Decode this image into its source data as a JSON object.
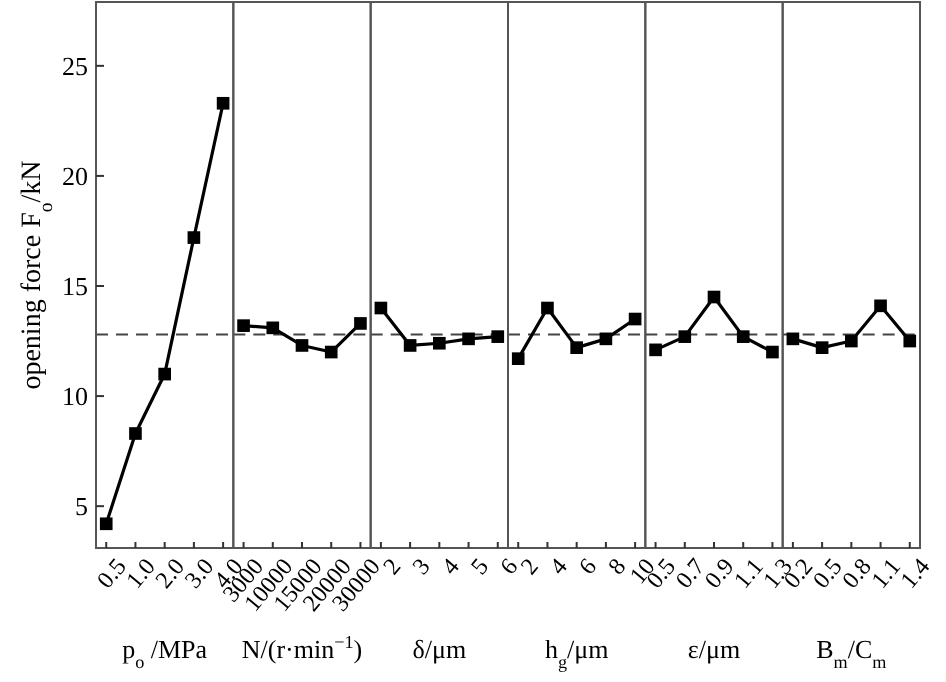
{
  "chart_data": [
    {
      "type": "line",
      "ylabel": "opening force F$_{o}$/kN",
      "xlabel": "p$_{o}$ /MPa",
      "categories": [
        "0.5",
        "1.0",
        "2.0",
        "3.0",
        "4.0"
      ],
      "series": [
        {
          "color": "#000000",
          "values": [
            4.2,
            8.3,
            11.0,
            17.2,
            23.3
          ]
        }
      ],
      "ylim": [
        3.1,
        27.9
      ],
      "yticks": [
        5,
        10,
        15,
        20,
        25
      ],
      "ref_lines": [
        {
          "axis": "y",
          "value": 12.8,
          "line_style": "dashed",
          "color": "#444444"
        }
      ],
      "marker": "square",
      "line_style": "solid",
      "grid": false
    },
    {
      "type": "line",
      "xlabel": "N/(r·min$^{−1}$)",
      "categories": [
        "3000",
        "10000",
        "15000",
        "20000",
        "30000"
      ],
      "series": [
        {
          "color": "#000000",
          "values": [
            13.2,
            13.1,
            12.3,
            12.0,
            13.3
          ]
        }
      ],
      "ylim": [
        3.1,
        27.9
      ],
      "yticks": [
        5,
        10,
        15,
        20,
        25
      ],
      "tick_labels": "x",
      "ref_lines": [
        {
          "axis": "y",
          "value": 12.8,
          "line_style": "dashed",
          "color": "#444444"
        }
      ],
      "marker": "square",
      "line_style": "solid",
      "grid": false
    },
    {
      "type": "line",
      "xlabel": "δ/μm",
      "categories": [
        "2",
        "3",
        "4",
        "5",
        "6"
      ],
      "series": [
        {
          "color": "#000000",
          "values": [
            14.0,
            12.3,
            12.4,
            12.6,
            12.7
          ]
        }
      ],
      "ylim": [
        3.1,
        27.9
      ],
      "yticks": [
        5,
        10,
        15,
        20,
        25
      ],
      "tick_labels": "x",
      "ref_lines": [
        {
          "axis": "y",
          "value": 12.8,
          "line_style": "dashed",
          "color": "#444444"
        }
      ],
      "marker": "square",
      "line_style": "solid",
      "grid": false
    },
    {
      "type": "line",
      "xlabel": "h$_{g}$/μm",
      "categories": [
        "2",
        "4",
        "6",
        "8",
        "10"
      ],
      "series": [
        {
          "color": "#000000",
          "values": [
            11.7,
            14.0,
            12.2,
            12.6,
            13.5
          ]
        }
      ],
      "ylim": [
        3.1,
        27.9
      ],
      "yticks": [
        5,
        10,
        15,
        20,
        25
      ],
      "tick_labels": "x",
      "ref_lines": [
        {
          "axis": "y",
          "value": 12.8,
          "line_style": "dashed",
          "color": "#444444"
        }
      ],
      "marker": "square",
      "line_style": "solid",
      "grid": false
    },
    {
      "type": "line",
      "xlabel": "ε/μm",
      "categories": [
        "0.5",
        "0.7",
        "0.9",
        "1.1",
        "1.3"
      ],
      "series": [
        {
          "color": "#000000",
          "values": [
            12.1,
            12.7,
            14.5,
            12.7,
            12.0
          ]
        }
      ],
      "ylim": [
        3.1,
        27.9
      ],
      "yticks": [
        5,
        10,
        15,
        20,
        25
      ],
      "tick_labels": "x",
      "ref_lines": [
        {
          "axis": "y",
          "value": 12.8,
          "line_style": "dashed",
          "color": "#444444"
        }
      ],
      "marker": "square",
      "line_style": "solid",
      "grid": false
    },
    {
      "type": "line",
      "xlabel": "B$_{m}$/C$_{m}$",
      "categories": [
        "0.2",
        "0.5",
        "0.8",
        "1.1",
        "1.4"
      ],
      "series": [
        {
          "color": "#000000",
          "values": [
            12.6,
            12.2,
            12.5,
            14.1,
            12.5
          ]
        }
      ],
      "ylim": [
        3.1,
        27.9
      ],
      "yticks": [
        5,
        10,
        15,
        20,
        25
      ],
      "tick_labels": "x",
      "ref_lines": [
        {
          "axis": "y",
          "value": 12.8,
          "line_style": "dashed",
          "color": "#444444"
        }
      ],
      "marker": "square",
      "line_style": "solid",
      "grid": false
    }
  ]
}
